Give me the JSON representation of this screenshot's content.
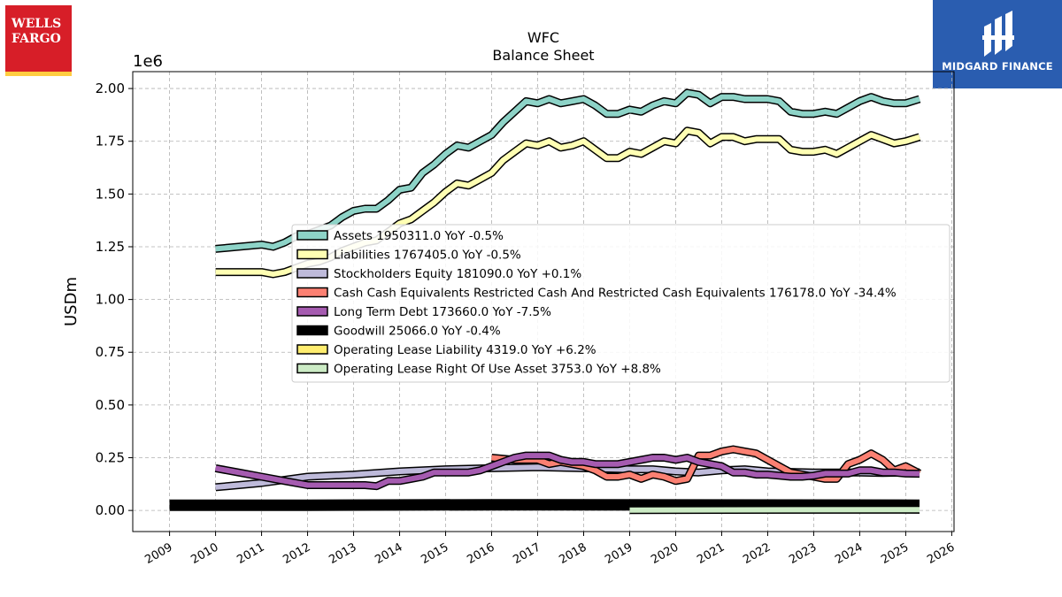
{
  "brand": {
    "left_logo": {
      "line1": "WELLS",
      "line2": "FARGO",
      "color": "#d71e28",
      "accent": "#ffcd41"
    },
    "right_logo": {
      "text": "MIDGARD FINANCE",
      "color": "#2a5db0"
    }
  },
  "chart_data": {
    "type": "line",
    "title": "WFC",
    "subtitle": "Balance  Sheet",
    "ylabel": "USDm",
    "y_scale_label": "1e6",
    "ylim": [
      -0.1,
      2.08
    ],
    "xlim": [
      2008.2,
      2026.05
    ],
    "y_ticks": [
      0.0,
      0.25,
      0.5,
      0.75,
      1.0,
      1.25,
      1.5,
      1.75,
      2.0
    ],
    "y_tick_labels": [
      "0.00",
      "0.25",
      "0.50",
      "0.75",
      "1.00",
      "1.25",
      "1.50",
      "1.75",
      "2.00"
    ],
    "x_ticks": [
      2009,
      2010,
      2011,
      2012,
      2013,
      2014,
      2015,
      2016,
      2017,
      2018,
      2019,
      2020,
      2021,
      2022,
      2023,
      2024,
      2025,
      2026
    ],
    "x_tick_labels": [
      "2009",
      "2010",
      "2011",
      "2012",
      "2013",
      "2014",
      "2015",
      "2016",
      "2017",
      "2018",
      "2019",
      "2020",
      "2021",
      "2022",
      "2023",
      "2024",
      "2025",
      "2026"
    ],
    "grid": true,
    "legend_position": "center-right",
    "series": [
      {
        "name": "Assets",
        "legend": "Assets  1950311.0 YoY -0.5%",
        "color": "#8dd3c7",
        "width": 6,
        "points": [
          [
            2010,
            1.24
          ],
          [
            2010.5,
            1.25
          ],
          [
            2011,
            1.26
          ],
          [
            2011.25,
            1.25
          ],
          [
            2011.5,
            1.27
          ],
          [
            2011.75,
            1.3
          ],
          [
            2012,
            1.31
          ],
          [
            2012.25,
            1.33
          ],
          [
            2012.5,
            1.35
          ],
          [
            2012.75,
            1.39
          ],
          [
            2013,
            1.42
          ],
          [
            2013.25,
            1.43
          ],
          [
            2013.5,
            1.43
          ],
          [
            2013.75,
            1.47
          ],
          [
            2014,
            1.52
          ],
          [
            2014.25,
            1.53
          ],
          [
            2014.5,
            1.6
          ],
          [
            2014.75,
            1.64
          ],
          [
            2015,
            1.69
          ],
          [
            2015.25,
            1.73
          ],
          [
            2015.5,
            1.72
          ],
          [
            2015.75,
            1.75
          ],
          [
            2016,
            1.78
          ],
          [
            2016.25,
            1.84
          ],
          [
            2016.5,
            1.89
          ],
          [
            2016.75,
            1.94
          ],
          [
            2017,
            1.93
          ],
          [
            2017.25,
            1.95
          ],
          [
            2017.5,
            1.93
          ],
          [
            2017.75,
            1.94
          ],
          [
            2018,
            1.95
          ],
          [
            2018.25,
            1.92
          ],
          [
            2018.5,
            1.88
          ],
          [
            2018.75,
            1.88
          ],
          [
            2019,
            1.9
          ],
          [
            2019.25,
            1.89
          ],
          [
            2019.5,
            1.92
          ],
          [
            2019.75,
            1.94
          ],
          [
            2020,
            1.93
          ],
          [
            2020.25,
            1.98
          ],
          [
            2020.5,
            1.97
          ],
          [
            2020.75,
            1.93
          ],
          [
            2021,
            1.96
          ],
          [
            2021.25,
            1.96
          ],
          [
            2021.5,
            1.95
          ],
          [
            2021.75,
            1.95
          ],
          [
            2022,
            1.95
          ],
          [
            2022.25,
            1.94
          ],
          [
            2022.5,
            1.89
          ],
          [
            2022.75,
            1.88
          ],
          [
            2023,
            1.88
          ],
          [
            2023.25,
            1.89
          ],
          [
            2023.5,
            1.88
          ],
          [
            2023.75,
            1.91
          ],
          [
            2024,
            1.94
          ],
          [
            2024.25,
            1.96
          ],
          [
            2024.5,
            1.94
          ],
          [
            2024.75,
            1.93
          ],
          [
            2025,
            1.93
          ],
          [
            2025.3,
            1.95
          ]
        ]
      },
      {
        "name": "Liabilities",
        "legend": "Liabilities  1767405.0 YoY -0.5%",
        "color": "#ffffb3",
        "width": 6,
        "points": [
          [
            2010,
            1.13
          ],
          [
            2010.5,
            1.13
          ],
          [
            2011,
            1.13
          ],
          [
            2011.25,
            1.12
          ],
          [
            2011.5,
            1.13
          ],
          [
            2011.75,
            1.15
          ],
          [
            2012,
            1.17
          ],
          [
            2012.25,
            1.18
          ],
          [
            2012.5,
            1.2
          ],
          [
            2012.75,
            1.23
          ],
          [
            2013,
            1.25
          ],
          [
            2013.25,
            1.27
          ],
          [
            2013.5,
            1.28
          ],
          [
            2013.75,
            1.32
          ],
          [
            2014,
            1.36
          ],
          [
            2014.25,
            1.38
          ],
          [
            2014.5,
            1.42
          ],
          [
            2014.75,
            1.46
          ],
          [
            2015,
            1.51
          ],
          [
            2015.25,
            1.55
          ],
          [
            2015.5,
            1.54
          ],
          [
            2015.75,
            1.57
          ],
          [
            2016,
            1.6
          ],
          [
            2016.25,
            1.66
          ],
          [
            2016.5,
            1.7
          ],
          [
            2016.75,
            1.74
          ],
          [
            2017,
            1.73
          ],
          [
            2017.25,
            1.75
          ],
          [
            2017.5,
            1.72
          ],
          [
            2017.75,
            1.73
          ],
          [
            2018,
            1.75
          ],
          [
            2018.25,
            1.71
          ],
          [
            2018.5,
            1.67
          ],
          [
            2018.75,
            1.67
          ],
          [
            2019,
            1.7
          ],
          [
            2019.25,
            1.69
          ],
          [
            2019.5,
            1.72
          ],
          [
            2019.75,
            1.75
          ],
          [
            2020,
            1.74
          ],
          [
            2020.25,
            1.8
          ],
          [
            2020.5,
            1.79
          ],
          [
            2020.75,
            1.74
          ],
          [
            2021,
            1.77
          ],
          [
            2021.25,
            1.77
          ],
          [
            2021.5,
            1.75
          ],
          [
            2021.75,
            1.76
          ],
          [
            2022,
            1.76
          ],
          [
            2022.25,
            1.76
          ],
          [
            2022.5,
            1.71
          ],
          [
            2022.75,
            1.7
          ],
          [
            2023,
            1.7
          ],
          [
            2023.25,
            1.71
          ],
          [
            2023.5,
            1.69
          ],
          [
            2023.75,
            1.72
          ],
          [
            2024,
            1.75
          ],
          [
            2024.25,
            1.78
          ],
          [
            2024.5,
            1.76
          ],
          [
            2024.75,
            1.74
          ],
          [
            2025,
            1.75
          ],
          [
            2025.3,
            1.77
          ]
        ]
      },
      {
        "name": "Stockholders Equity",
        "legend": "Stockholders Equity  181090.0 YoY +0.1%",
        "color": "#bebada",
        "width": 6,
        "points": [
          [
            2010,
            0.11
          ],
          [
            2011,
            0.13
          ],
          [
            2012,
            0.16
          ],
          [
            2013,
            0.17
          ],
          [
            2014,
            0.185
          ],
          [
            2015,
            0.195
          ],
          [
            2016,
            0.2
          ],
          [
            2017,
            0.205
          ],
          [
            2018,
            0.2
          ],
          [
            2019,
            0.195
          ],
          [
            2019.5,
            0.195
          ],
          [
            2020,
            0.185
          ],
          [
            2020.5,
            0.18
          ],
          [
            2021,
            0.19
          ],
          [
            2021.5,
            0.195
          ],
          [
            2022,
            0.185
          ],
          [
            2023,
            0.18
          ],
          [
            2023.5,
            0.18
          ],
          [
            2024,
            0.18
          ],
          [
            2024.5,
            0.178
          ],
          [
            2025,
            0.18
          ],
          [
            2025.3,
            0.181
          ]
        ]
      },
      {
        "name": "Cash Cash Equivalents Restricted Cash And Restricted Cash Equivalents",
        "legend": "Cash Cash Equivalents Restricted Cash And Restricted Cash Equivalents  176178.0 YoY -34.4%",
        "color": "#fb8072",
        "width": 6,
        "points": [
          [
            2016,
            0.25
          ],
          [
            2016.5,
            0.24
          ],
          [
            2017,
            0.24
          ],
          [
            2017.25,
            0.22
          ],
          [
            2017.5,
            0.23
          ],
          [
            2017.75,
            0.22
          ],
          [
            2018,
            0.21
          ],
          [
            2018.25,
            0.19
          ],
          [
            2018.5,
            0.16
          ],
          [
            2018.75,
            0.16
          ],
          [
            2019,
            0.17
          ],
          [
            2019.25,
            0.15
          ],
          [
            2019.5,
            0.17
          ],
          [
            2019.75,
            0.16
          ],
          [
            2020,
            0.14
          ],
          [
            2020.25,
            0.15
          ],
          [
            2020.5,
            0.26
          ],
          [
            2020.75,
            0.26
          ],
          [
            2021,
            0.28
          ],
          [
            2021.25,
            0.29
          ],
          [
            2021.5,
            0.28
          ],
          [
            2021.75,
            0.27
          ],
          [
            2022,
            0.24
          ],
          [
            2022.25,
            0.21
          ],
          [
            2022.5,
            0.18
          ],
          [
            2022.75,
            0.17
          ],
          [
            2023,
            0.16
          ],
          [
            2023.25,
            0.15
          ],
          [
            2023.5,
            0.15
          ],
          [
            2023.75,
            0.22
          ],
          [
            2024,
            0.24
          ],
          [
            2024.25,
            0.27
          ],
          [
            2024.5,
            0.24
          ],
          [
            2024.75,
            0.19
          ],
          [
            2025,
            0.21
          ],
          [
            2025.3,
            0.176
          ]
        ]
      },
      {
        "name": "Long Term Debt",
        "legend": "Long Term Debt  173660.0 YoY -7.5%",
        "color": "#a55bb0",
        "width": 6,
        "points": [
          [
            2010,
            0.2
          ],
          [
            2010.5,
            0.18
          ],
          [
            2011,
            0.16
          ],
          [
            2011.5,
            0.14
          ],
          [
            2012,
            0.12
          ],
          [
            2012.25,
            0.12
          ],
          [
            2012.5,
            0.12
          ],
          [
            2012.75,
            0.12
          ],
          [
            2013,
            0.12
          ],
          [
            2013.25,
            0.12
          ],
          [
            2013.5,
            0.115
          ],
          [
            2013.75,
            0.14
          ],
          [
            2014,
            0.14
          ],
          [
            2014.25,
            0.15
          ],
          [
            2014.5,
            0.16
          ],
          [
            2014.75,
            0.18
          ],
          [
            2015,
            0.18
          ],
          [
            2015.25,
            0.18
          ],
          [
            2015.5,
            0.18
          ],
          [
            2015.75,
            0.19
          ],
          [
            2016,
            0.21
          ],
          [
            2016.25,
            0.23
          ],
          [
            2016.5,
            0.25
          ],
          [
            2016.75,
            0.26
          ],
          [
            2017,
            0.26
          ],
          [
            2017.25,
            0.26
          ],
          [
            2017.5,
            0.24
          ],
          [
            2017.75,
            0.23
          ],
          [
            2018,
            0.23
          ],
          [
            2018.25,
            0.22
          ],
          [
            2018.5,
            0.22
          ],
          [
            2018.75,
            0.22
          ],
          [
            2019,
            0.23
          ],
          [
            2019.25,
            0.24
          ],
          [
            2019.5,
            0.25
          ],
          [
            2019.75,
            0.25
          ],
          [
            2020,
            0.24
          ],
          [
            2020.25,
            0.25
          ],
          [
            2020.5,
            0.23
          ],
          [
            2020.75,
            0.22
          ],
          [
            2021,
            0.21
          ],
          [
            2021.25,
            0.18
          ],
          [
            2021.5,
            0.18
          ],
          [
            2021.75,
            0.17
          ],
          [
            2022,
            0.17
          ],
          [
            2022.25,
            0.165
          ],
          [
            2022.5,
            0.16
          ],
          [
            2022.75,
            0.16
          ],
          [
            2023,
            0.165
          ],
          [
            2023.25,
            0.175
          ],
          [
            2023.5,
            0.175
          ],
          [
            2023.75,
            0.175
          ],
          [
            2024,
            0.19
          ],
          [
            2024.25,
            0.19
          ],
          [
            2024.5,
            0.18
          ],
          [
            2024.75,
            0.18
          ],
          [
            2025,
            0.175
          ],
          [
            2025.3,
            0.174
          ]
        ]
      },
      {
        "name": "Goodwill",
        "legend": "Goodwill  25066.0 YoY -0.4%",
        "color": "#000000",
        "width": 10,
        "points": [
          [
            2009,
            0.025
          ],
          [
            2012,
            0.025
          ],
          [
            2016,
            0.027
          ],
          [
            2020,
            0.026
          ],
          [
            2025.3,
            0.025
          ]
        ]
      },
      {
        "name": "Operating Lease Liability",
        "legend": "Operating Lease Liability  4319.0 YoY +6.2%",
        "color": "#ffed6f",
        "width": 6,
        "points": [
          [
            2019,
            0.005
          ],
          [
            2025.3,
            0.004
          ]
        ]
      },
      {
        "name": "Operating Lease Right Of Use Asset",
        "legend": "Operating Lease Right Of Use Asset  3753.0 YoY +8.8%",
        "color": "#ccebc5",
        "width": 6,
        "points": [
          [
            2019,
            0.002
          ],
          [
            2025.3,
            0.004
          ]
        ]
      }
    ]
  }
}
